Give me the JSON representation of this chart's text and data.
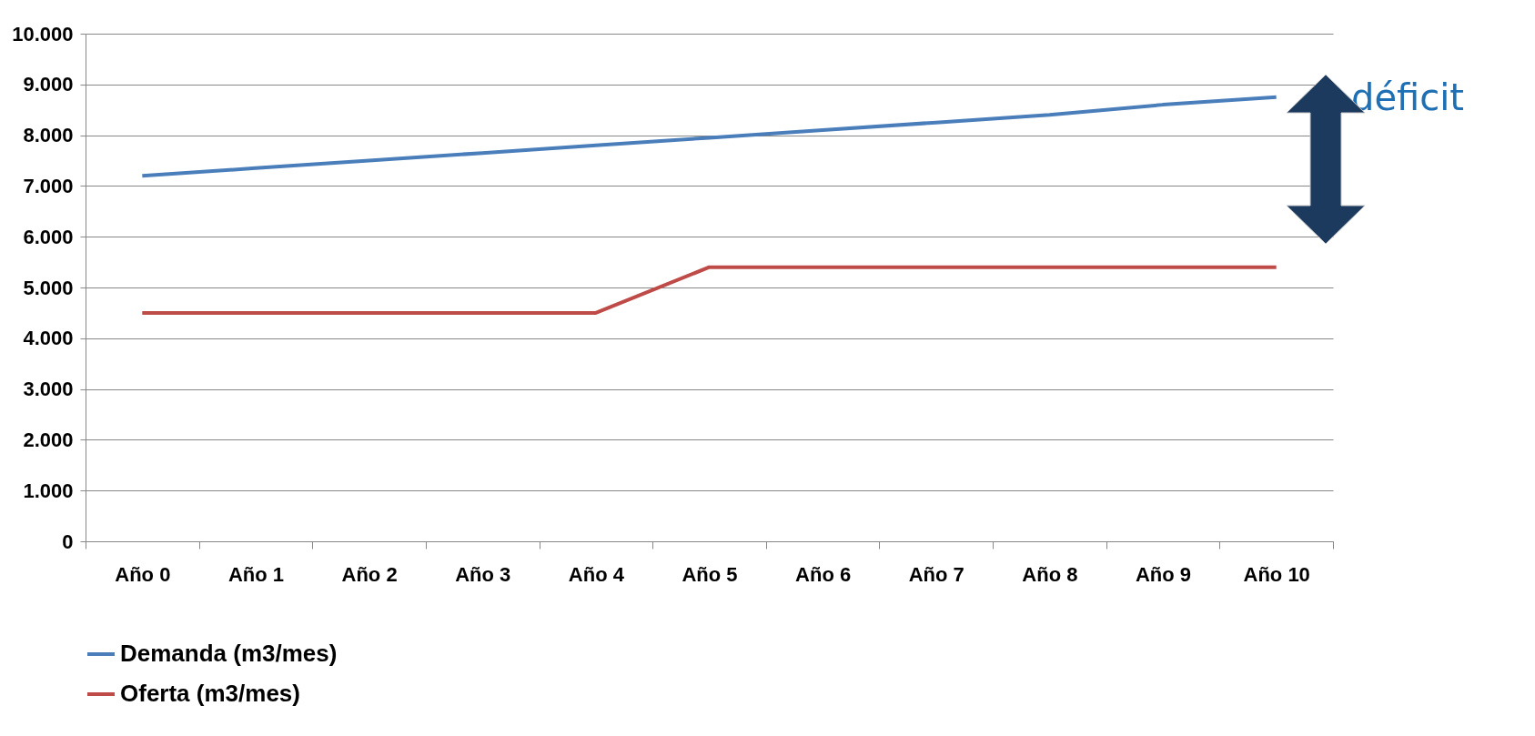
{
  "chart_data": {
    "type": "line",
    "categories": [
      "Año 0",
      "Año 1",
      "Año 2",
      "Año 3",
      "Año 4",
      "Año 5",
      "Año 6",
      "Año 7",
      "Año 8",
      "Año 9",
      "Año 10"
    ],
    "series": [
      {
        "name": "Demanda (m3/mes)",
        "color": "#4a7ebb",
        "values": [
          7200,
          7350,
          7500,
          7650,
          7800,
          7950,
          8100,
          8250,
          8400,
          8600,
          8750
        ]
      },
      {
        "name": "Oferta (m3/mes)",
        "color": "#be4b48",
        "values": [
          4500,
          4500,
          4500,
          4500,
          4500,
          5400,
          5400,
          5400,
          5400,
          5400,
          5400
        ]
      }
    ],
    "ylim": [
      0,
      10000
    ],
    "yticks": [
      {
        "value": 0,
        "label": "0"
      },
      {
        "value": 1000,
        "label": "1.000"
      },
      {
        "value": 2000,
        "label": "2.000"
      },
      {
        "value": 3000,
        "label": "3.000"
      },
      {
        "value": 4000,
        "label": "4.000"
      },
      {
        "value": 5000,
        "label": "5.000"
      },
      {
        "value": 6000,
        "label": "6.000"
      },
      {
        "value": 7000,
        "label": "7.000"
      },
      {
        "value": 8000,
        "label": "8.000"
      },
      {
        "value": 9000,
        "label": "9.000"
      },
      {
        "value": 10000,
        "label": "10.000"
      }
    ],
    "grid": "y",
    "legend": "bottom",
    "marker": "none",
    "line_style": "solid",
    "annotations": [
      "déficit"
    ]
  }
}
